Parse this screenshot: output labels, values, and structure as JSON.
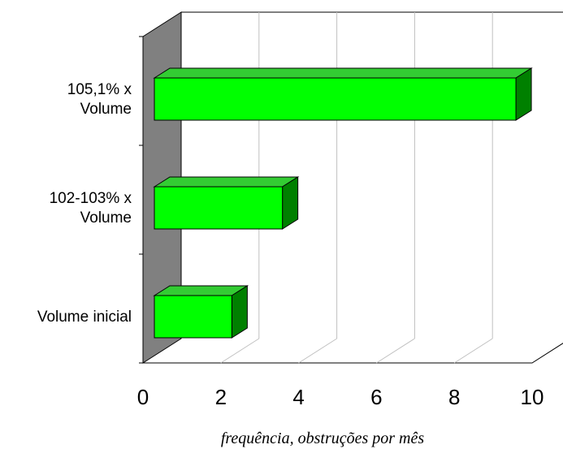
{
  "chart_data": {
    "type": "bar",
    "orientation": "horizontal",
    "style": "3d",
    "categories": [
      "105,1% x Volume",
      "102-103% x Volume",
      "Volume inicial"
    ],
    "category_lines": [
      [
        "105,1% x",
        "Volume"
      ],
      [
        "102-103% x",
        "Volume"
      ],
      [
        "Volume inicial"
      ]
    ],
    "values": [
      9.5,
      3.5,
      2.2
    ],
    "xlabel": "frequência, obstruções por mês",
    "xlim": [
      0,
      10
    ],
    "xticks": [
      "0",
      "2",
      "4",
      "6",
      "8",
      "10"
    ],
    "grid": true,
    "legend": "none",
    "colors": {
      "bar_front": "#00ff00",
      "bar_top": "#33cc33",
      "bar_side": "#008000",
      "back_wall": "#808080",
      "gridline": "#c0c0c0"
    }
  }
}
